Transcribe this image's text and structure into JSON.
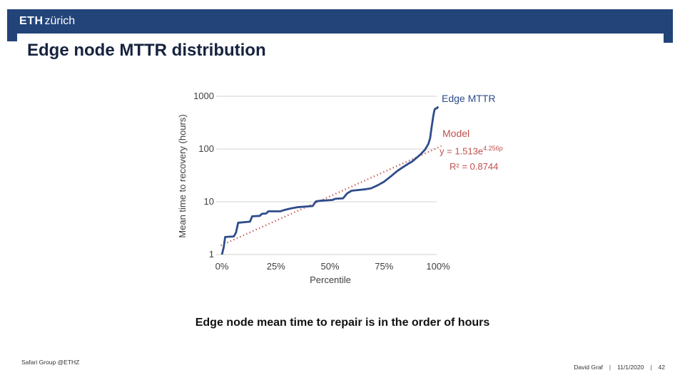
{
  "slide": {
    "logo": {
      "eth": "ETH",
      "city": "zürich"
    },
    "title": "Edge node MTTR distribution",
    "caption": "Edge node mean time to repair is in the order of hours",
    "footer": {
      "group": "Safari Group @ETHZ",
      "author": "David Graf",
      "date": "11/1/2020",
      "page": "42",
      "divider": "|"
    }
  },
  "chart_data": {
    "type": "line",
    "xlabel": "Percentile",
    "ylabel": "Mean time to recovery (hours)",
    "y_scale": "log",
    "ylim": [
      1,
      1000
    ],
    "yticks": [
      1,
      10,
      100,
      1000
    ],
    "ytick_labels": [
      "1",
      "10",
      "100",
      "1000"
    ],
    "xticks_pct": [
      0,
      25,
      50,
      75,
      100
    ],
    "xtick_labels": [
      "0%",
      "25%",
      "50%",
      "75%",
      "100%"
    ],
    "grid": "horizontal",
    "legend_position": "right",
    "series": [
      {
        "name": "Edge MTTR",
        "color": "#2e4c8a",
        "style": "solid",
        "points": [
          [
            0,
            1
          ],
          [
            0.8,
            1.35
          ],
          [
            1.5,
            2.15
          ],
          [
            5.5,
            2.2
          ],
          [
            6.5,
            2.6
          ],
          [
            7.5,
            4.0
          ],
          [
            13,
            4.2
          ],
          [
            14,
            5.3
          ],
          [
            17.5,
            5.4
          ],
          [
            18.5,
            5.9
          ],
          [
            20.5,
            6.0
          ],
          [
            21.5,
            6.6
          ],
          [
            27,
            6.6
          ],
          [
            29,
            7.0
          ],
          [
            32,
            7.5
          ],
          [
            35,
            7.9
          ],
          [
            42,
            8.3
          ],
          [
            43.5,
            10.2
          ],
          [
            46,
            10.5
          ],
          [
            51,
            10.8
          ],
          [
            52.5,
            11.4
          ],
          [
            56,
            11.6
          ],
          [
            58,
            14.5
          ],
          [
            60,
            16.2
          ],
          [
            66,
            17.2
          ],
          [
            69,
            18
          ],
          [
            72,
            20.5
          ],
          [
            75,
            24
          ],
          [
            78,
            30
          ],
          [
            81,
            38
          ],
          [
            84,
            46
          ],
          [
            86,
            52
          ],
          [
            88,
            58
          ],
          [
            90,
            68
          ],
          [
            92,
            80
          ],
          [
            94,
            98
          ],
          [
            95.5,
            125
          ],
          [
            96.3,
            160
          ],
          [
            97,
            260
          ],
          [
            97.8,
            430
          ],
          [
            98.3,
            545
          ],
          [
            98.7,
            585
          ],
          [
            99.5,
            592
          ],
          [
            100,
            640
          ]
        ]
      },
      {
        "name": "Model",
        "color": "#c0504d",
        "style": "dotted",
        "fit": {
          "a": 1.513,
          "b": 4.256
        },
        "equation_base": "y = 1.513e",
        "equation_exponent": "4.256p",
        "r2": "R² = 0.8744"
      }
    ],
    "colors": {
      "gridline": "#d2d2d2",
      "axis_text": "#3f3f3f",
      "edge_line": "#2e4c8a",
      "model_line": "#c0504d"
    }
  }
}
